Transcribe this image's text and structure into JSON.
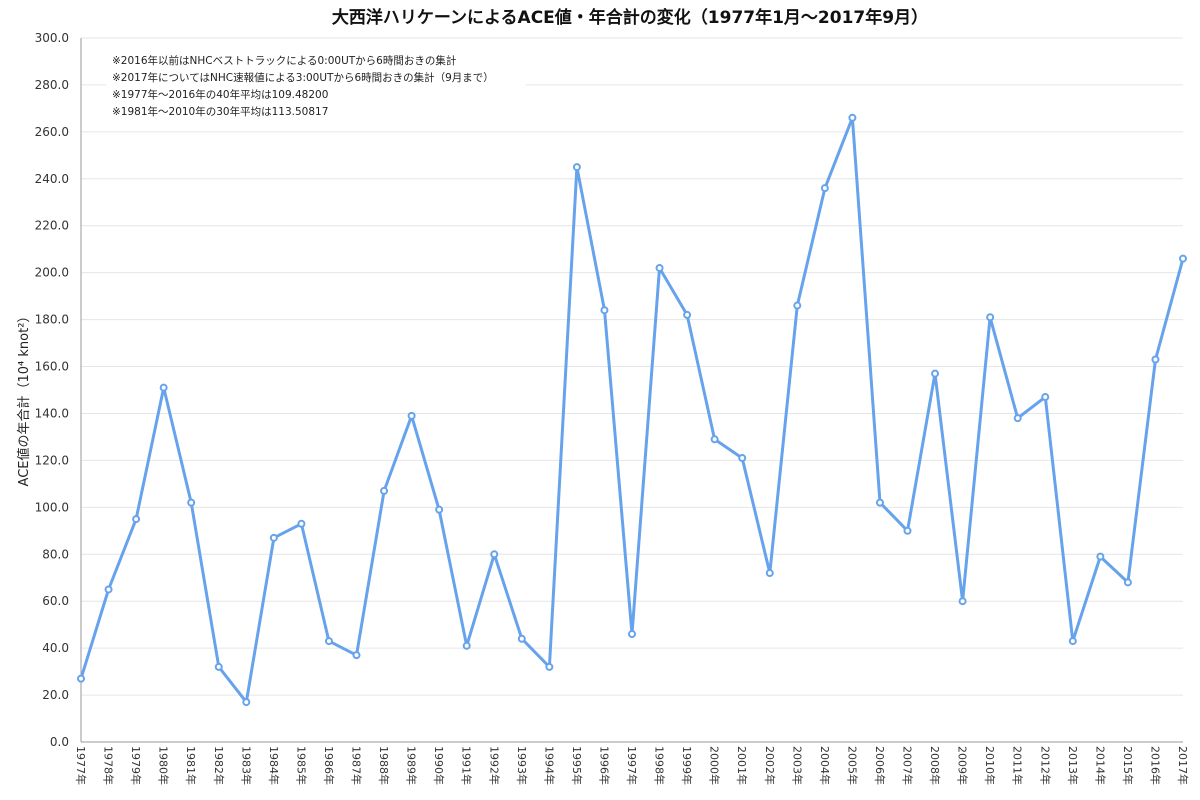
{
  "chart_data": {
    "type": "line",
    "title": "大西洋ハリケーンによるACE値・年合計の変化（1977年1月〜2017年9月）",
    "ylabel": "ACE値の年合計（10⁴ knot²）",
    "ylim": [
      0,
      300
    ],
    "ytick_step": 20,
    "ytick_format_decimals": 1,
    "grid": true,
    "color": "#66a3ec",
    "categories": [
      "1977年",
      "1978年",
      "1979年",
      "1980年",
      "1981年",
      "1982年",
      "1983年",
      "1984年",
      "1985年",
      "1986年",
      "1987年",
      "1988年",
      "1989年",
      "1990年",
      "1991年",
      "1992年",
      "1993年",
      "1994年",
      "1995年",
      "1996年",
      "1997年",
      "1998年",
      "1999年",
      "2000年",
      "2001年",
      "2002年",
      "2003年",
      "2004年",
      "2005年",
      "2006年",
      "2007年",
      "2008年",
      "2009年",
      "2010年",
      "2011年",
      "2012年",
      "2013年",
      "2014年",
      "2015年",
      "2016年",
      "2017年"
    ],
    "values": [
      27,
      65,
      95,
      151,
      102,
      32,
      17,
      87,
      93,
      43,
      37,
      107,
      139,
      99,
      41,
      80,
      44,
      32,
      245,
      184,
      46,
      202,
      182,
      129,
      121,
      72,
      186,
      236,
      266,
      102,
      90,
      157,
      60,
      181,
      138,
      147,
      43,
      79,
      68,
      163,
      206
    ],
    "annotations": [
      "※2016年以前はNHCベストトラックによる0:00UTから6時間おきの集計",
      "※2017年についてはNHC速報値による3:00UTから6時間おきの集計（9月まで）",
      "※1977年〜2016年の40年平均は109.48200",
      "※1981年〜2010年の30年平均は113.50817"
    ]
  }
}
